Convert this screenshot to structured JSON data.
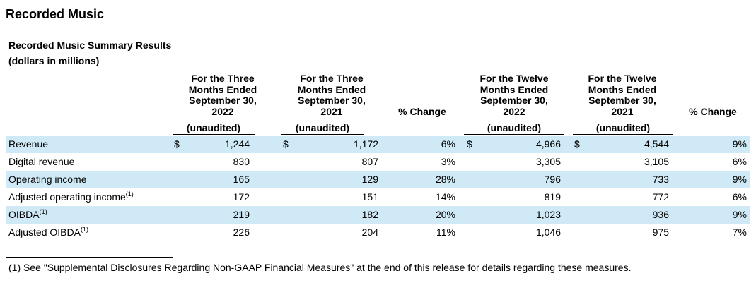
{
  "section_title": "Recorded Music",
  "subtitle_line1": "Recorded Music Summary Results",
  "subtitle_line2": "(dollars in millions)",
  "columns": [
    {
      "header": [
        "For the Three",
        "Months Ended",
        "September 30,",
        "2022"
      ],
      "sub": "(unaudited)"
    },
    {
      "header": [
        "For the Three",
        "Months Ended",
        "September 30,",
        "2021"
      ],
      "sub": "(unaudited)"
    },
    {
      "header": [
        "% Change"
      ],
      "sub": ""
    },
    {
      "header": [
        "For the Twelve",
        "Months Ended",
        "September 30,",
        "2022"
      ],
      "sub": "(unaudited)"
    },
    {
      "header": [
        "For the Twelve",
        "Months Ended",
        "September 30,",
        "2021"
      ],
      "sub": "(unaudited)"
    },
    {
      "header": [
        "% Change"
      ],
      "sub": ""
    }
  ],
  "currency_symbol": "$",
  "footnote_marker": "(1)",
  "rows": [
    {
      "label": "Revenue",
      "note": "",
      "shaded": true,
      "show_currency": true,
      "values": [
        "1,244",
        "1,172",
        "6%",
        "4,966",
        "4,544",
        "9%"
      ]
    },
    {
      "label": "Digital revenue",
      "note": "",
      "shaded": false,
      "show_currency": false,
      "values": [
        "830",
        "807",
        "3%",
        "3,305",
        "3,105",
        "6%"
      ]
    },
    {
      "label": "Operating income",
      "note": "",
      "shaded": true,
      "show_currency": false,
      "values": [
        "165",
        "129",
        "28%",
        "796",
        "733",
        "9%"
      ]
    },
    {
      "label": "Adjusted operating income",
      "note": "(1)",
      "shaded": false,
      "show_currency": false,
      "values": [
        "172",
        "151",
        "14%",
        "819",
        "772",
        "6%"
      ]
    },
    {
      "label": "OIBDA",
      "note": "(1)",
      "shaded": true,
      "show_currency": false,
      "values": [
        "219",
        "182",
        "20%",
        "1,023",
        "936",
        "9%"
      ]
    },
    {
      "label": "Adjusted OIBDA",
      "note": "(1)",
      "shaded": false,
      "show_currency": false,
      "values": [
        "226",
        "204",
        "11%",
        "1,046",
        "975",
        "7%"
      ]
    }
  ],
  "footnote": "(1) See \"Supplemental Disclosures Regarding Non-GAAP Financial Measures\" at the end of this release for details regarding these measures."
}
